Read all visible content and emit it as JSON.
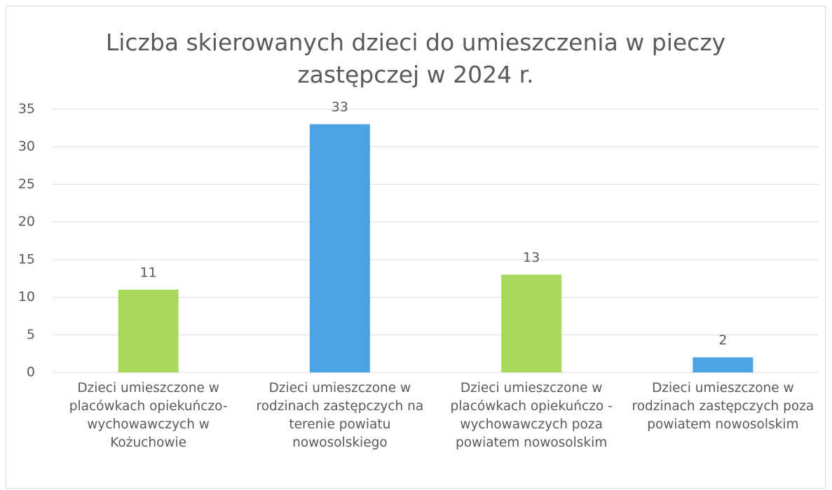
{
  "chart_data": {
    "type": "bar",
    "title": "Liczba skierowanych dzieci do umieszczenia w pieczy zastępczej w 2024 r.",
    "categories": [
      "Dzieci umieszczone w placówkach opiekuńczo-wychowawczych w Kożuchowie",
      "Dzieci umieszczone w rodzinach zastępczych na terenie powiatu nowosolskiego",
      "Dzieci umieszczone w placówkach opiekuńczo - wychowawczych poza powiatem nowosolskim",
      "Dzieci umieszczone w rodzinach zastępczych poza powiatem nowosolskim"
    ],
    "values": [
      11,
      33,
      13,
      2
    ],
    "colors": [
      "#a9d95b",
      "#4aa3e4",
      "#a9d95b",
      "#4aa3e4"
    ],
    "ylim": [
      0,
      35
    ],
    "yticks": [
      0,
      5,
      10,
      15,
      20,
      25,
      30,
      35
    ],
    "grid": true,
    "data_labels": true
  }
}
